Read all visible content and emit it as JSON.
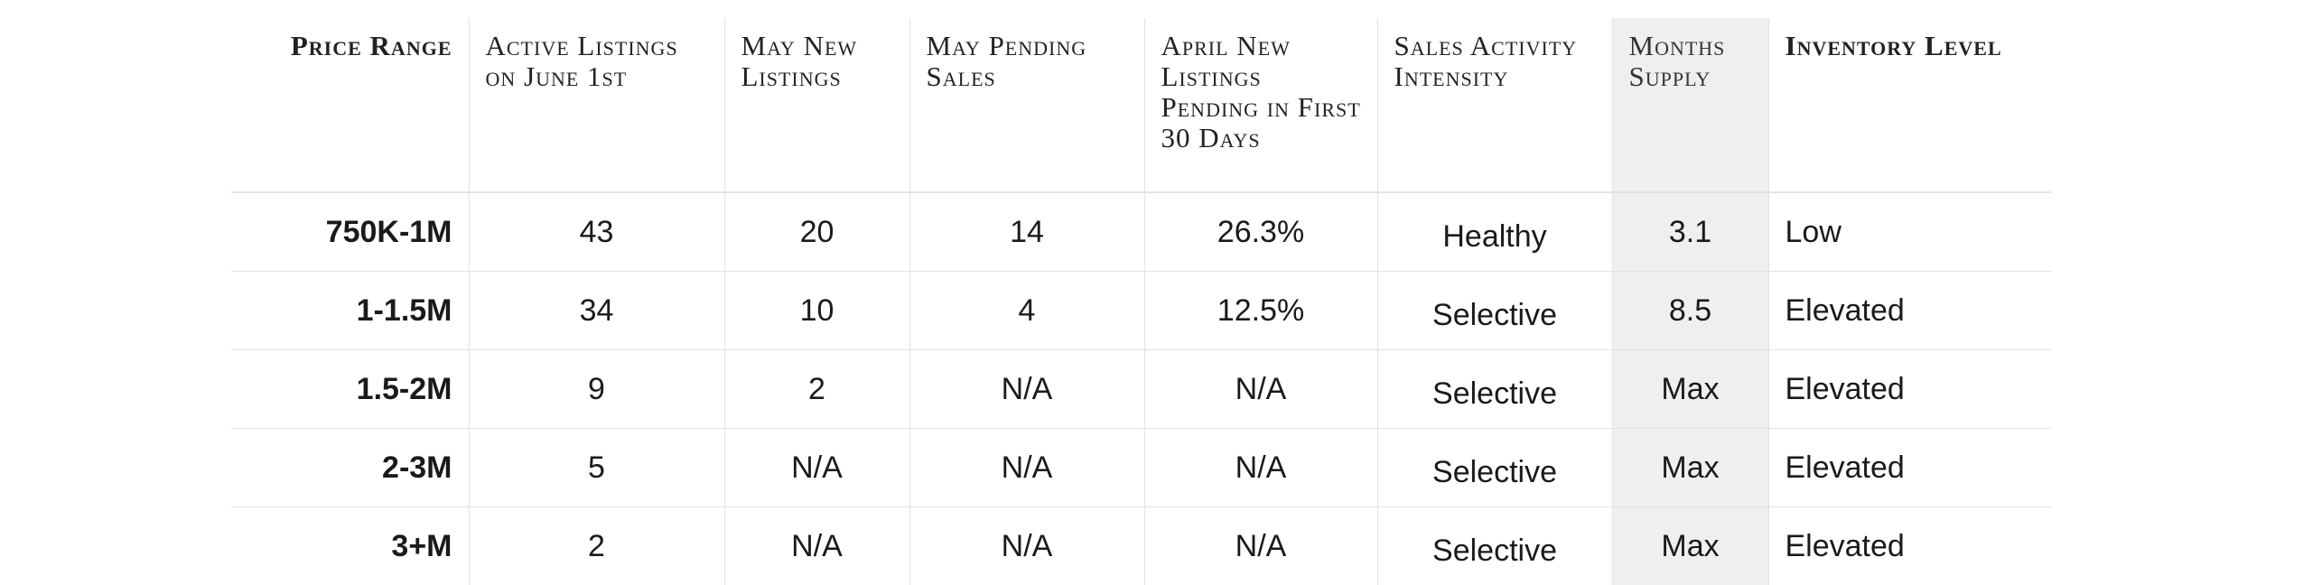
{
  "table": {
    "headers": [
      "Price Range",
      "Active Listings on June 1st",
      "May New Listings",
      "May Pending Sales",
      "April New Listings Pending in First 30 Days",
      "Sales Activity Intensity",
      "Months Supply",
      "Inventory Level"
    ],
    "rows": [
      [
        "750K-1M",
        "43",
        "20",
        "14",
        "26.3%",
        "Healthy",
        "3.1",
        "Low"
      ],
      [
        "1-1.5M",
        "34",
        "10",
        "4",
        "12.5%",
        "Selective",
        "8.5",
        "Elevated"
      ],
      [
        "1.5-2M",
        "9",
        "2",
        "N/A",
        "N/A",
        "Selective",
        "Max",
        "Elevated"
      ],
      [
        "2-3M",
        "5",
        "N/A",
        "N/A",
        "N/A",
        "Selective",
        "Max",
        "Elevated"
      ],
      [
        "3+M",
        "2",
        "N/A",
        "N/A",
        "N/A",
        "Selective",
        "Max",
        "Elevated"
      ]
    ]
  },
  "colors": {
    "highlight_column": "#efefef",
    "grid_lines": "#e2e2e2",
    "text": "#1a1a1a"
  }
}
